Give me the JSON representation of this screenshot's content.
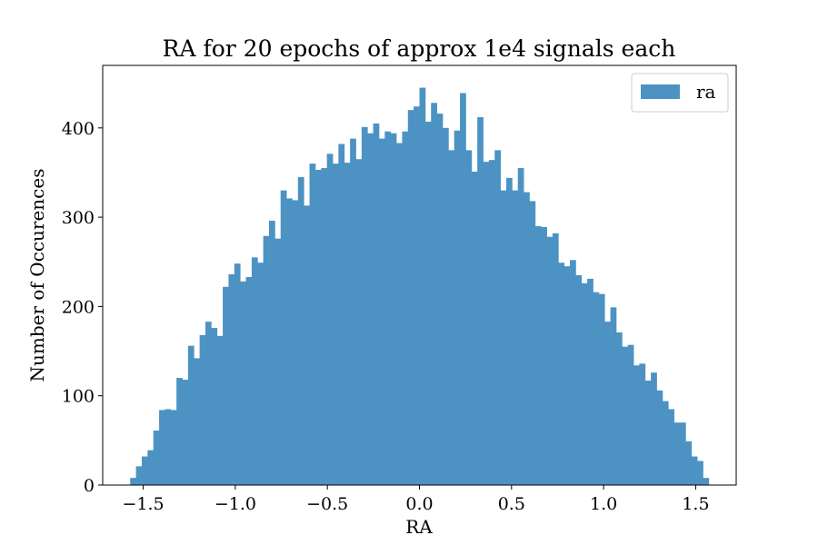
{
  "chart_data": {
    "type": "bar",
    "title": "RA for 20 epochs of approx 1e4 signals each",
    "xlabel": "RA",
    "ylabel": "Number of Occurences",
    "xlim": [
      -1.72,
      1.72
    ],
    "ylim": [
      0,
      470
    ],
    "grid": false,
    "legend": {
      "entries": [
        "ra"
      ],
      "placement": "top-right"
    },
    "bar_color": "#4c93c4",
    "x_ticks": [
      -1.5,
      -1.0,
      -0.5,
      0.0,
      0.5,
      1.0,
      1.5
    ],
    "x_tick_labels": [
      "−1.5",
      "−1.0",
      "−0.5",
      "0.0",
      "0.5",
      "1.0",
      "1.5"
    ],
    "y_ticks": [
      0,
      100,
      200,
      300,
      400
    ],
    "y_tick_labels": [
      "0",
      "100",
      "200",
      "300",
      "400"
    ],
    "bins": {
      "start": -1.5708,
      "end": 1.5708,
      "count": 100
    },
    "series": [
      {
        "name": "ra",
        "values": [
          8,
          21,
          32,
          39,
          61,
          84,
          85,
          84,
          120,
          118,
          156,
          142,
          168,
          183,
          176,
          167,
          222,
          236,
          248,
          228,
          233,
          255,
          249,
          279,
          296,
          276,
          330,
          321,
          319,
          345,
          313,
          360,
          353,
          355,
          371,
          360,
          382,
          361,
          388,
          365,
          401,
          394,
          405,
          388,
          396,
          394,
          383,
          396,
          420,
          424,
          445,
          407,
          428,
          416,
          400,
          375,
          397,
          439,
          375,
          351,
          412,
          362,
          364,
          375,
          330,
          344,
          330,
          355,
          328,
          318,
          290,
          289,
          278,
          282,
          249,
          245,
          252,
          235,
          226,
          231,
          216,
          214,
          183,
          199,
          171,
          155,
          157,
          134,
          136,
          117,
          126,
          106,
          94,
          85,
          70,
          70,
          49,
          32,
          27,
          8
        ]
      }
    ]
  }
}
